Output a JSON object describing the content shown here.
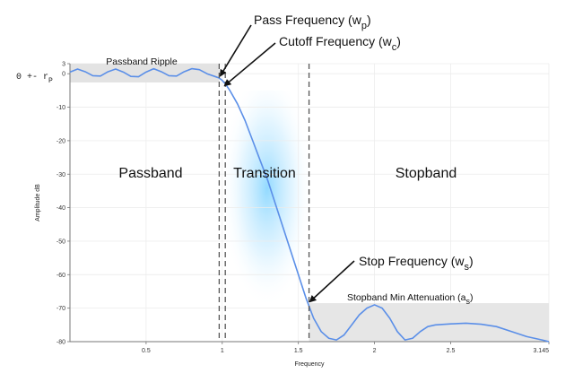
{
  "chart_data": {
    "type": "line",
    "title": "",
    "xlabel": "Frequency",
    "ylabel": "Amplitude dB",
    "xlim": [
      0,
      3.145
    ],
    "ylim": [
      -80,
      3
    ],
    "grid": true,
    "x_ticks": [
      {
        "value": 0.5,
        "label": "0.5"
      },
      {
        "value": 1,
        "label": "1"
      },
      {
        "value": 1.5,
        "label": "1.5"
      },
      {
        "value": 2,
        "label": "2"
      },
      {
        "value": 2.5,
        "label": "2.5"
      },
      {
        "value": 3.145,
        "label": "3.145"
      }
    ],
    "y_ticks": [
      {
        "value": 3,
        "label": "3"
      },
      {
        "value": 0,
        "label": "0"
      },
      {
        "value": -10,
        "label": "-10"
      },
      {
        "value": -20,
        "label": "-20"
      },
      {
        "value": -30,
        "label": "-30"
      },
      {
        "value": -40,
        "label": "-40"
      },
      {
        "value": -50,
        "label": "-50"
      },
      {
        "value": -60,
        "label": "-60"
      },
      {
        "value": -70,
        "label": "-70"
      },
      {
        "value": -80,
        "label": "-80"
      }
    ],
    "series": [
      {
        "color": "#5b8fe8",
        "x": [
          0,
          0.05,
          0.1,
          0.15,
          0.2,
          0.25,
          0.3,
          0.35,
          0.4,
          0.45,
          0.5,
          0.55,
          0.6,
          0.65,
          0.7,
          0.75,
          0.8,
          0.85,
          0.9,
          0.95,
          0.98,
          1.0,
          1.02,
          1.05,
          1.1,
          1.15,
          1.2,
          1.25,
          1.3,
          1.35,
          1.4,
          1.45,
          1.5,
          1.55,
          1.6,
          1.65,
          1.7,
          1.75,
          1.8,
          1.85,
          1.9,
          1.95,
          2.0,
          2.05,
          2.1,
          2.15,
          2.2,
          2.25,
          2.3,
          2.35,
          2.4,
          2.5,
          2.6,
          2.7,
          2.8,
          2.9,
          3.0,
          3.1,
          3.145
        ],
        "y": [
          0.5,
          1.4,
          0.6,
          -0.6,
          -0.7,
          0.6,
          1.4,
          0.5,
          -0.8,
          -0.9,
          0.5,
          1.5,
          0.6,
          -0.6,
          -0.7,
          0.6,
          1.5,
          1.2,
          0,
          -0.8,
          -1.3,
          -2,
          -3,
          -5,
          -9,
          -14,
          -20,
          -26,
          -32,
          -39,
          -46,
          -53,
          -60,
          -67,
          -73,
          -77,
          -79,
          -79.5,
          -78,
          -75,
          -72,
          -70,
          -69,
          -70,
          -73,
          -77,
          -79.5,
          -79,
          -77,
          -75.5,
          -75,
          -74.7,
          -74.5,
          -74.8,
          -75.5,
          -77,
          -78.5,
          -79.5,
          -80
        ]
      }
    ],
    "regions": [
      "Passband",
      "Transition",
      "Stopband"
    ],
    "passband_ripple_range": [
      -1,
      3
    ],
    "stopband_attenuation_db": -68.5,
    "pass_frequency": 0.98,
    "cutoff_frequency": 1.02,
    "stop_frequency": 1.57,
    "annotations": {
      "passband_ripple": "Passband Ripple",
      "pass_frequency": "Pass Frequency (w",
      "pass_frequency_sub": "p",
      "cutoff_frequency": "Cutoff Frequency (w",
      "cutoff_frequency_sub": "c",
      "stop_frequency": "Stop Frequency (w",
      "stop_frequency_sub": "s",
      "stopband_min_attenuation": "Stopband Min Attenuation (a",
      "stopband_min_attenuation_sub": "s",
      "close_paren": ")",
      "zero_pm_rp": "0 +- r",
      "zero_pm_rp_sub": "P"
    }
  }
}
